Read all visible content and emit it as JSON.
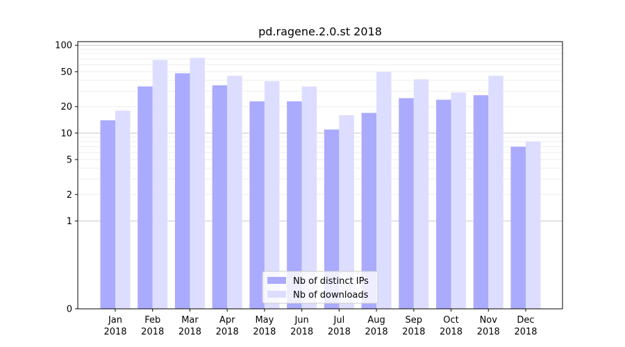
{
  "chart_data": {
    "type": "bar",
    "title": "pd.ragene.2.0.st 2018",
    "xlabel": "",
    "ylabel": "",
    "yscale": "symlog",
    "ylim": [
      0,
      110
    ],
    "yticks": [
      0,
      1,
      2,
      5,
      10,
      20,
      50,
      100
    ],
    "ytick_labels": [
      "0",
      "1",
      "2",
      "5",
      "10",
      "20",
      "50",
      "100"
    ],
    "categories": [
      "Jan",
      "Feb",
      "Mar",
      "Apr",
      "May",
      "Jun",
      "Jul",
      "Aug",
      "Sep",
      "Oct",
      "Nov",
      "Dec"
    ],
    "category_years": [
      "2018",
      "2018",
      "2018",
      "2018",
      "2018",
      "2018",
      "2018",
      "2018",
      "2018",
      "2018",
      "2018",
      "2018"
    ],
    "series": [
      {
        "name": "Nb of distinct IPs",
        "color": "#aaaaff",
        "values": [
          14,
          34,
          48,
          35,
          23,
          23,
          11,
          17,
          25,
          24,
          27,
          7
        ]
      },
      {
        "name": "Nb of downloads",
        "color": "#ddddff",
        "values": [
          18,
          68,
          72,
          45,
          39,
          34,
          16,
          50,
          41,
          29,
          45,
          8
        ]
      }
    ],
    "legend_position": "bottom-center"
  }
}
